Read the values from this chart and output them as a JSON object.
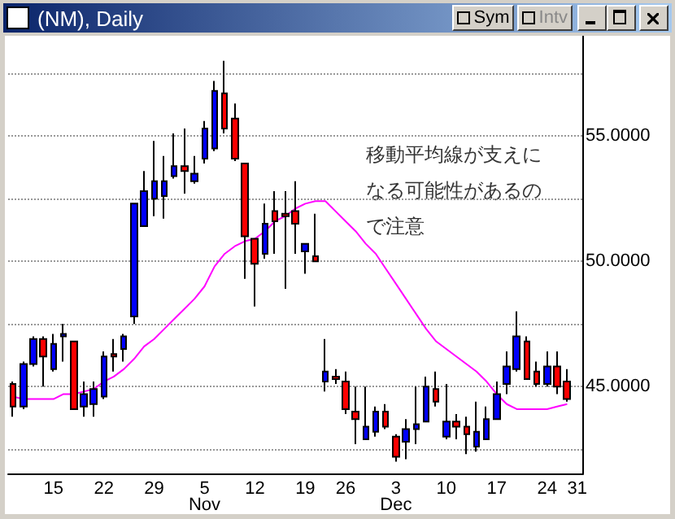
{
  "chart_data": {
    "type": "candlestick",
    "title": "(NM), Daily",
    "categories": [
      null,
      null,
      null,
      null,
      "15",
      null,
      null,
      null,
      null,
      "22",
      null,
      null,
      null,
      null,
      "29",
      null,
      null,
      null,
      null,
      "5\nNov",
      null,
      null,
      null,
      null,
      "12",
      null,
      null,
      null,
      null,
      "19",
      null,
      null,
      null,
      "26",
      null,
      null,
      null,
      null,
      "3\nDec",
      null,
      null,
      null,
      null,
      "10",
      null,
      null,
      null,
      null,
      "17",
      null,
      null,
      null,
      null,
      "24",
      null,
      null,
      "31"
    ],
    "series": [
      {
        "ohlc": [
          [
            45.1,
            45.2,
            43.8,
            44.2
          ],
          [
            44.2,
            46.0,
            44.1,
            45.9
          ],
          [
            45.9,
            47.0,
            45.8,
            46.9
          ],
          [
            46.9,
            47.0,
            45.0,
            46.2
          ],
          [
            45.7,
            47.1,
            45.6,
            46.7
          ],
          [
            47.0,
            47.5,
            46.0,
            47.1
          ],
          [
            46.8,
            46.8,
            44.1,
            44.1
          ],
          [
            44.2,
            45.2,
            43.8,
            44.7
          ],
          [
            44.3,
            45.2,
            43.8,
            44.9
          ],
          [
            44.6,
            46.4,
            44.5,
            46.2
          ],
          [
            46.3,
            46.9,
            45.6,
            46.2
          ],
          [
            46.5,
            47.1,
            46.0,
            47.0
          ],
          [
            47.8,
            52.3,
            47.5,
            52.3
          ],
          [
            51.4,
            53.6,
            51.4,
            52.8
          ],
          [
            52.5,
            54.8,
            51.8,
            53.2
          ],
          [
            52.6,
            54.2,
            51.7,
            53.2
          ],
          [
            53.4,
            55.1,
            53.3,
            53.8
          ],
          [
            53.8,
            55.3,
            52.7,
            53.6
          ],
          [
            53.2,
            54.2,
            53.1,
            53.5
          ],
          [
            54.1,
            55.6,
            53.9,
            55.3
          ],
          [
            54.5,
            57.2,
            54.4,
            56.8
          ],
          [
            56.7,
            58.0,
            55.1,
            55.3
          ],
          [
            55.7,
            56.3,
            54.0,
            54.1
          ],
          [
            53.9,
            53.9,
            49.3,
            51.0
          ],
          [
            50.9,
            50.9,
            48.2,
            49.9
          ],
          [
            50.3,
            52.3,
            50.1,
            51.5
          ],
          [
            52.0,
            52.8,
            50.3,
            51.6
          ],
          [
            51.9,
            52.8,
            48.9,
            51.8
          ],
          [
            52.0,
            53.2,
            50.3,
            51.5
          ],
          [
            50.4,
            50.7,
            49.5,
            50.7
          ],
          [
            50.2,
            51.9,
            50.0,
            50.0
          ],
          [
            45.2,
            46.9,
            44.8,
            45.6
          ],
          [
            45.4,
            45.7,
            45.1,
            45.3
          ],
          [
            45.2,
            45.6,
            43.9,
            44.1
          ],
          [
            44.0,
            45.0,
            42.7,
            43.7
          ],
          [
            42.9,
            45.0,
            42.9,
            43.4
          ],
          [
            43.2,
            44.2,
            43.0,
            44.0
          ],
          [
            44.0,
            44.3,
            43.3,
            43.4
          ],
          [
            43.0,
            43.1,
            42.0,
            42.2
          ],
          [
            42.8,
            43.7,
            42.1,
            43.3
          ],
          [
            43.3,
            45.0,
            42.7,
            43.5
          ],
          [
            43.6,
            45.4,
            43.6,
            45.0
          ],
          [
            44.9,
            45.6,
            44.2,
            44.4
          ],
          [
            43.0,
            45.1,
            42.9,
            43.6
          ],
          [
            43.6,
            43.9,
            42.9,
            43.4
          ],
          [
            43.4,
            43.8,
            42.3,
            43.1
          ],
          [
            42.6,
            44.4,
            42.4,
            43.2
          ],
          [
            42.9,
            44.2,
            42.9,
            43.7
          ],
          [
            43.7,
            45.2,
            43.7,
            44.7
          ],
          [
            45.1,
            46.4,
            44.7,
            45.8
          ],
          [
            45.7,
            48.0,
            45.6,
            47.0
          ],
          [
            46.8,
            47.0,
            45.3,
            45.3
          ],
          [
            45.6,
            46.0,
            45.0,
            45.1
          ],
          [
            45.1,
            46.4,
            45.0,
            45.8
          ],
          [
            45.8,
            46.4,
            44.7,
            45.0
          ],
          [
            45.2,
            45.7,
            44.4,
            44.5
          ],
          null
        ],
        "colors": [
          "#ff0000",
          "#0000ff",
          "#0000ff",
          "#ff0000",
          "#0000ff",
          "#0000ff",
          "#ff0000",
          "#0000ff",
          "#0000ff",
          "#0000ff",
          "#ff0000",
          "#0000ff",
          "#0000ff",
          "#0000ff",
          "#0000ff",
          "#0000ff",
          "#0000ff",
          "#ff0000",
          "#0000ff",
          "#0000ff",
          "#0000ff",
          "#ff0000",
          "#ff0000",
          "#ff0000",
          "#ff0000",
          "#0000ff",
          "#ff0000",
          "#ff0000",
          "#ff0000",
          "#0000ff",
          "#ff0000",
          "#0000ff",
          "#ff0000",
          "#ff0000",
          "#ff0000",
          "#0000ff",
          "#0000ff",
          "#ff0000",
          "#ff0000",
          "#0000ff",
          "#0000ff",
          "#0000ff",
          "#ff0000",
          "#0000ff",
          "#ff0000",
          "#ff0000",
          "#0000ff",
          "#0000ff",
          "#0000ff",
          "#0000ff",
          "#0000ff",
          "#ff0000",
          "#ff0000",
          "#0000ff",
          "#ff0000",
          "#ff0000",
          null
        ]
      },
      {
        "type": "line",
        "color": "#ff00ff",
        "values": [
          44.6,
          44.5,
          44.5,
          44.5,
          44.5,
          44.7,
          44.7,
          44.8,
          44.9,
          45.2,
          45.4,
          45.7,
          46.1,
          46.6,
          46.9,
          47.3,
          47.7,
          48.1,
          48.5,
          49.0,
          49.8,
          50.3,
          50.6,
          50.8,
          50.9,
          51.2,
          51.6,
          51.8,
          52.1,
          52.3,
          52.4,
          52.4,
          52.0,
          51.6,
          51.2,
          50.7,
          50.3,
          49.7,
          49.1,
          48.5,
          47.9,
          47.3,
          46.8,
          46.5,
          46.2,
          45.9,
          45.6,
          45.2,
          44.7,
          44.3,
          44.1,
          44.1,
          44.1,
          44.1,
          44.2,
          44.3,
          null
        ]
      }
    ],
    "ylim": [
      41.5,
      59
    ],
    "yticks": [
      {
        "value": 42.5,
        "label": null
      },
      {
        "value": 45,
        "label": "45.0000"
      },
      {
        "value": 47.5,
        "label": null
      },
      {
        "value": 50,
        "label": "50.0000"
      },
      {
        "value": 52.5,
        "label": null
      },
      {
        "value": 55,
        "label": "55.0000"
      },
      {
        "value": 57.5,
        "label": null
      }
    ],
    "grid": "y",
    "annotations": [
      "移動平均線が支えになる可能性があるので注意",
      "Sym",
      "Intv"
    ]
  }
}
